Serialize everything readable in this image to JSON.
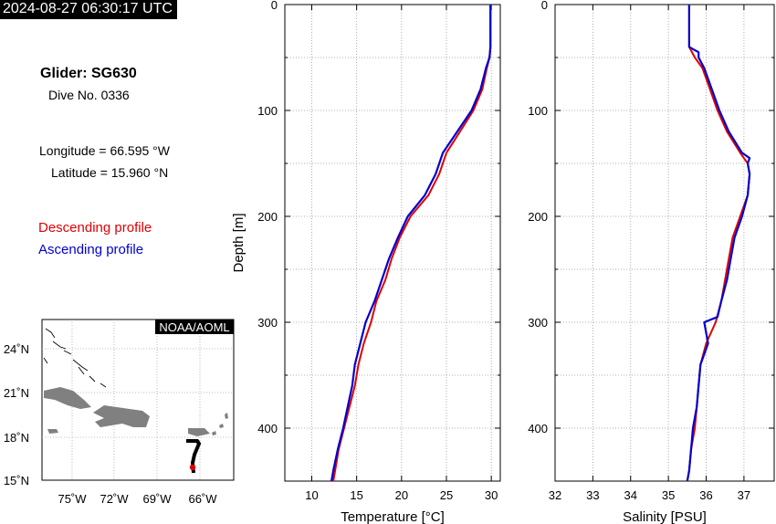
{
  "header": {
    "timestamp": "2024-08-27 06:30:17 UTC",
    "glider": "Glider: SG630",
    "dive": "Dive No. 0336",
    "longitude": "Longitude = 66.595 °W",
    "latitude": "Latitude = 15.960 °N"
  },
  "legend": {
    "descending": "Descending profile",
    "ascending": "Ascending profile",
    "descending_color": "#e00000",
    "ascending_color": "#0000d0"
  },
  "map": {
    "credit": "NOAA/AOML",
    "lat_labels": [
      "24˚N",
      "21˚N",
      "18˚N",
      "15˚N"
    ],
    "lon_labels": [
      "75˚W",
      "72˚W",
      "69˚W",
      "66˚W"
    ],
    "land_color": "#808080",
    "track_color": "#000000",
    "position_color": "#e00000"
  },
  "chart_data": [
    {
      "type": "line",
      "xlabel": "Temperature [°C]",
      "ylabel": "Depth [m]",
      "xlim": [
        7,
        31
      ],
      "ylim": [
        450,
        0
      ],
      "xticks": [
        10,
        15,
        20,
        25,
        30
      ],
      "yticks": [
        0,
        100,
        200,
        300,
        400
      ],
      "grid": true,
      "series": [
        {
          "name": "Descending profile",
          "depth": [
            0,
            20,
            40,
            50,
            60,
            80,
            100,
            120,
            140,
            160,
            180,
            200,
            220,
            240,
            260,
            280,
            300,
            320,
            340,
            360,
            380,
            400,
            420,
            440,
            450
          ],
          "values": [
            29.9,
            29.9,
            29.9,
            29.8,
            29.5,
            29.0,
            28.0,
            26.5,
            25.0,
            24.2,
            23.0,
            21.0,
            19.8,
            18.9,
            18.2,
            17.2,
            16.6,
            15.8,
            15.2,
            14.8,
            14.2,
            13.6,
            13.0,
            12.6,
            12.4
          ]
        },
        {
          "name": "Ascending profile",
          "depth": [
            0,
            20,
            40,
            50,
            60,
            80,
            100,
            120,
            140,
            160,
            180,
            200,
            220,
            240,
            260,
            280,
            300,
            320,
            340,
            360,
            380,
            400,
            420,
            440,
            450
          ],
          "values": [
            29.9,
            29.9,
            29.9,
            29.8,
            29.4,
            28.8,
            27.8,
            26.2,
            24.6,
            23.8,
            22.6,
            20.7,
            19.6,
            18.6,
            17.8,
            17.0,
            16.0,
            15.4,
            14.8,
            14.5,
            14.0,
            13.5,
            12.9,
            12.4,
            12.2
          ]
        }
      ]
    },
    {
      "type": "line",
      "xlabel": "Salinity [PSU]",
      "ylabel": "",
      "xlim": [
        32,
        37.8
      ],
      "ylim": [
        450,
        0
      ],
      "xticks": [
        32,
        33,
        34,
        35,
        36,
        37
      ],
      "yticks": [
        0,
        100,
        200,
        300,
        400
      ],
      "grid": true,
      "series": [
        {
          "name": "Descending profile",
          "depth": [
            0,
            20,
            40,
            50,
            60,
            80,
            100,
            120,
            140,
            150,
            160,
            180,
            200,
            220,
            240,
            260,
            280,
            300,
            320,
            340,
            360,
            380,
            400,
            420,
            440,
            450
          ],
          "values": [
            35.55,
            35.55,
            35.55,
            35.7,
            35.9,
            36.1,
            36.3,
            36.55,
            36.9,
            37.1,
            37.15,
            37.1,
            36.9,
            36.7,
            36.6,
            36.5,
            36.4,
            36.25,
            36.0,
            35.85,
            35.8,
            35.75,
            35.7,
            35.6,
            35.55,
            35.5
          ]
        },
        {
          "name": "Ascending profile",
          "depth": [
            0,
            20,
            40,
            45,
            50,
            60,
            80,
            100,
            120,
            140,
            145,
            150,
            160,
            180,
            200,
            220,
            240,
            260,
            280,
            295,
            300,
            320,
            340,
            360,
            380,
            400,
            420,
            440,
            450
          ],
          "values": [
            35.55,
            35.55,
            35.55,
            35.8,
            35.8,
            35.95,
            36.15,
            36.35,
            36.6,
            36.95,
            37.15,
            37.1,
            37.15,
            37.1,
            36.95,
            36.75,
            36.65,
            36.55,
            36.4,
            36.3,
            35.95,
            36.05,
            35.85,
            35.8,
            35.75,
            35.65,
            35.6,
            35.55,
            35.5
          ]
        }
      ]
    }
  ]
}
